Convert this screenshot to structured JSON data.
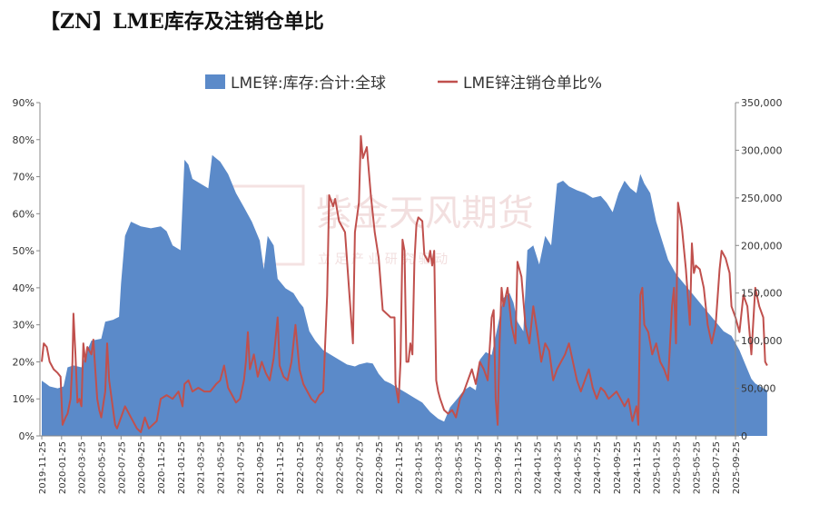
{
  "title": "【ZN】LME库存及注销仓单比",
  "watermark": {
    "brand": "紫金天风期货",
    "tagline": "立 足 产 业  研 究 驱 动"
  },
  "chart_data": {
    "type": "area+line",
    "legend_position": "top-center",
    "series": [
      {
        "name": "LME锌:库存:合计:全球",
        "type": "area",
        "axis": "right",
        "color": "#5b8ac9"
      },
      {
        "name": "LME锌注销仓单比%",
        "type": "line",
        "axis": "left",
        "color": "#c0504d"
      }
    ],
    "y_left": {
      "min": 0,
      "max": 90,
      "ticks": [
        "0%",
        "10%",
        "20%",
        "30%",
        "40%",
        "50%",
        "60%",
        "70%",
        "80%",
        "90%"
      ]
    },
    "y_right": {
      "min": 0,
      "max": 350000,
      "ticks": [
        "0",
        "50,000",
        "100,000",
        "150,000",
        "200,000",
        "250,000",
        "300,000",
        "350,000"
      ]
    },
    "x_ticks": [
      "2019-11-25",
      "2020-01-25",
      "2020-03-25",
      "2020-05-25",
      "2020-07-25",
      "2020-09-25",
      "2020-11-25",
      "2021-01-25",
      "2021-03-25",
      "2021-05-25",
      "2021-07-25",
      "2021-09-25",
      "2021-11-25",
      "2022-01-25",
      "2022-03-25",
      "2022-05-25",
      "2022-07-25",
      "2022-09-25",
      "2022-11-25",
      "2023-01-25",
      "2023-03-25",
      "2023-05-25",
      "2023-07-25",
      "2023-09-25",
      "2023-11-25",
      "2024-01-25",
      "2024-03-25",
      "2024-05-25",
      "2024-07-25",
      "2024-09-25",
      "2024-11-25",
      "2025-01-25",
      "2025-03-25",
      "2025-05-25",
      "2025-07-25",
      "2025-09-25"
    ],
    "inventory": [
      [
        0,
        58000
      ],
      [
        0.2,
        55000
      ],
      [
        0.4,
        52000
      ],
      [
        0.8,
        50000
      ],
      [
        1.1,
        52000
      ],
      [
        1.3,
        72000
      ],
      [
        1.6,
        74000
      ],
      [
        2.0,
        72000
      ],
      [
        2.2,
        85000
      ],
      [
        2.5,
        100000
      ],
      [
        3.0,
        102000
      ],
      [
        3.2,
        120000
      ],
      [
        3.6,
        122000
      ],
      [
        3.9,
        125000
      ],
      [
        4.0,
        160000
      ],
      [
        4.2,
        210000
      ],
      [
        4.5,
        225000
      ],
      [
        5.0,
        220000
      ],
      [
        5.5,
        218000
      ],
      [
        6.0,
        220000
      ],
      [
        6.3,
        215000
      ],
      [
        6.6,
        200000
      ],
      [
        7.0,
        195000
      ],
      [
        7.2,
        290000
      ],
      [
        7.4,
        285000
      ],
      [
        7.6,
        270000
      ],
      [
        8.0,
        265000
      ],
      [
        8.4,
        260000
      ],
      [
        8.6,
        295000
      ],
      [
        9.0,
        288000
      ],
      [
        9.4,
        275000
      ],
      [
        9.8,
        255000
      ],
      [
        10.2,
        240000
      ],
      [
        10.6,
        225000
      ],
      [
        11.0,
        205000
      ],
      [
        11.2,
        175000
      ],
      [
        11.4,
        210000
      ],
      [
        11.7,
        200000
      ],
      [
        11.9,
        165000
      ],
      [
        12.3,
        155000
      ],
      [
        12.7,
        150000
      ],
      [
        13.0,
        140000
      ],
      [
        13.2,
        135000
      ],
      [
        13.5,
        110000
      ],
      [
        13.8,
        100000
      ],
      [
        14.2,
        90000
      ],
      [
        14.6,
        85000
      ],
      [
        15.0,
        80000
      ],
      [
        15.4,
        75000
      ],
      [
        15.8,
        73000
      ],
      [
        16.0,
        75000
      ],
      [
        16.4,
        77000
      ],
      [
        16.7,
        76000
      ],
      [
        17.0,
        65000
      ],
      [
        17.3,
        58000
      ],
      [
        17.6,
        55000
      ],
      [
        18.0,
        50000
      ],
      [
        18.4,
        45000
      ],
      [
        18.8,
        40000
      ],
      [
        19.2,
        35000
      ],
      [
        19.6,
        25000
      ],
      [
        20.0,
        18000
      ],
      [
        20.3,
        15000
      ],
      [
        20.6,
        30000
      ],
      [
        21.0,
        40000
      ],
      [
        21.3,
        48000
      ],
      [
        21.6,
        52000
      ],
      [
        21.9,
        48000
      ],
      [
        22.1,
        80000
      ],
      [
        22.4,
        88000
      ],
      [
        22.7,
        85000
      ],
      [
        23.0,
        115000
      ],
      [
        23.3,
        145000
      ],
      [
        23.6,
        150000
      ],
      [
        23.8,
        140000
      ],
      [
        24.0,
        120000
      ],
      [
        24.3,
        110000
      ],
      [
        24.5,
        195000
      ],
      [
        24.8,
        200000
      ],
      [
        25.1,
        180000
      ],
      [
        25.4,
        210000
      ],
      [
        25.7,
        200000
      ],
      [
        26.0,
        265000
      ],
      [
        26.3,
        268000
      ],
      [
        26.6,
        262000
      ],
      [
        27.0,
        258000
      ],
      [
        27.4,
        255000
      ],
      [
        27.8,
        250000
      ],
      [
        28.2,
        252000
      ],
      [
        28.5,
        245000
      ],
      [
        28.8,
        235000
      ],
      [
        29.1,
        255000
      ],
      [
        29.4,
        268000
      ],
      [
        29.7,
        260000
      ],
      [
        30.0,
        255000
      ],
      [
        30.2,
        275000
      ],
      [
        30.4,
        265000
      ],
      [
        30.7,
        255000
      ],
      [
        31.0,
        225000
      ],
      [
        31.3,
        205000
      ],
      [
        31.6,
        185000
      ],
      [
        32.0,
        170000
      ],
      [
        32.4,
        160000
      ],
      [
        32.8,
        150000
      ],
      [
        33.2,
        140000
      ],
      [
        33.6,
        130000
      ],
      [
        34.0,
        120000
      ],
      [
        34.4,
        110000
      ],
      [
        34.8,
        105000
      ],
      [
        35.2,
        90000
      ],
      [
        35.5,
        75000
      ],
      [
        35.8,
        60000
      ],
      [
        36.0,
        55000
      ],
      [
        36.4,
        50000
      ],
      [
        36.6,
        48000
      ]
    ],
    "ratio": [
      [
        0,
        20
      ],
      [
        0.1,
        25
      ],
      [
        0.25,
        24
      ],
      [
        0.4,
        20
      ],
      [
        0.6,
        18
      ],
      [
        0.8,
        17
      ],
      [
        0.95,
        16
      ],
      [
        1.05,
        3
      ],
      [
        1.2,
        5
      ],
      [
        1.3,
        6
      ],
      [
        1.45,
        10
      ],
      [
        1.55,
        20
      ],
      [
        1.6,
        33
      ],
      [
        1.7,
        22
      ],
      [
        1.8,
        9
      ],
      [
        1.9,
        10
      ],
      [
        2.0,
        8
      ],
      [
        2.1,
        25
      ],
      [
        2.2,
        20
      ],
      [
        2.3,
        24
      ],
      [
        2.5,
        22
      ],
      [
        2.6,
        26
      ],
      [
        2.7,
        18
      ],
      [
        2.8,
        10
      ],
      [
        2.9,
        7
      ],
      [
        3.0,
        5
      ],
      [
        3.2,
        12
      ],
      [
        3.3,
        25
      ],
      [
        3.4,
        15
      ],
      [
        3.6,
        7
      ],
      [
        3.7,
        3
      ],
      [
        3.8,
        2
      ],
      [
        4.0,
        5
      ],
      [
        4.2,
        8
      ],
      [
        4.4,
        6
      ],
      [
        4.6,
        4
      ],
      [
        4.8,
        2
      ],
      [
        5.0,
        1
      ],
      [
        5.2,
        5
      ],
      [
        5.4,
        2
      ],
      [
        5.6,
        3
      ],
      [
        5.8,
        4
      ],
      [
        6.0,
        10
      ],
      [
        6.3,
        11
      ],
      [
        6.6,
        10
      ],
      [
        6.9,
        12
      ],
      [
        7.1,
        8
      ],
      [
        7.2,
        14
      ],
      [
        7.4,
        15
      ],
      [
        7.6,
        12
      ],
      [
        7.9,
        13
      ],
      [
        8.2,
        12
      ],
      [
        8.5,
        12
      ],
      [
        8.8,
        14
      ],
      [
        9.0,
        15
      ],
      [
        9.2,
        19
      ],
      [
        9.4,
        13
      ],
      [
        9.6,
        11
      ],
      [
        9.8,
        9
      ],
      [
        10.0,
        10
      ],
      [
        10.2,
        15
      ],
      [
        10.3,
        20
      ],
      [
        10.4,
        28
      ],
      [
        10.5,
        18
      ],
      [
        10.7,
        22
      ],
      [
        10.9,
        16
      ],
      [
        11.1,
        20
      ],
      [
        11.3,
        17
      ],
      [
        11.5,
        15
      ],
      [
        11.7,
        21
      ],
      [
        11.9,
        32
      ],
      [
        12.0,
        19
      ],
      [
        12.2,
        16
      ],
      [
        12.4,
        15
      ],
      [
        12.6,
        20
      ],
      [
        12.8,
        30
      ],
      [
        13.0,
        18
      ],
      [
        13.2,
        14
      ],
      [
        13.4,
        12
      ],
      [
        13.6,
        10
      ],
      [
        13.8,
        9
      ],
      [
        14.0,
        11
      ],
      [
        14.2,
        12
      ],
      [
        14.4,
        38
      ],
      [
        14.5,
        65
      ],
      [
        14.7,
        62
      ],
      [
        14.8,
        64
      ],
      [
        15.0,
        58
      ],
      [
        15.3,
        55
      ],
      [
        15.5,
        40
      ],
      [
        15.7,
        25
      ],
      [
        15.8,
        55
      ],
      [
        16.0,
        63
      ],
      [
        16.1,
        81
      ],
      [
        16.2,
        75
      ],
      [
        16.4,
        78
      ],
      [
        16.6,
        65
      ],
      [
        16.8,
        55
      ],
      [
        17.0,
        48
      ],
      [
        17.2,
        34
      ],
      [
        17.4,
        33
      ],
      [
        17.6,
        32
      ],
      [
        17.8,
        32
      ],
      [
        17.85,
        14
      ],
      [
        18.0,
        9
      ],
      [
        18.1,
        20
      ],
      [
        18.2,
        53
      ],
      [
        18.3,
        50
      ],
      [
        18.4,
        20
      ],
      [
        18.5,
        20
      ],
      [
        18.6,
        25
      ],
      [
        18.7,
        22
      ],
      [
        18.8,
        47
      ],
      [
        18.9,
        57
      ],
      [
        19.0,
        59
      ],
      [
        19.2,
        58
      ],
      [
        19.3,
        49
      ],
      [
        19.5,
        47
      ],
      [
        19.6,
        50
      ],
      [
        19.7,
        46
      ],
      [
        19.8,
        50
      ],
      [
        19.9,
        15
      ],
      [
        20.0,
        12
      ],
      [
        20.1,
        10
      ],
      [
        20.3,
        7
      ],
      [
        20.5,
        6
      ],
      [
        20.7,
        7
      ],
      [
        20.9,
        5
      ],
      [
        21.1,
        10
      ],
      [
        21.3,
        12
      ],
      [
        21.5,
        15
      ],
      [
        21.7,
        18
      ],
      [
        21.9,
        14
      ],
      [
        22.1,
        20
      ],
      [
        22.3,
        18
      ],
      [
        22.5,
        15
      ],
      [
        22.7,
        32
      ],
      [
        22.8,
        34
      ],
      [
        22.9,
        10
      ],
      [
        23.0,
        3
      ],
      [
        23.1,
        25
      ],
      [
        23.2,
        40
      ],
      [
        23.3,
        35
      ],
      [
        23.5,
        40
      ],
      [
        23.7,
        30
      ],
      [
        23.9,
        25
      ],
      [
        24.0,
        47
      ],
      [
        24.2,
        43
      ],
      [
        24.4,
        30
      ],
      [
        24.6,
        25
      ],
      [
        24.8,
        35
      ],
      [
        25.0,
        28
      ],
      [
        25.2,
        20
      ],
      [
        25.4,
        25
      ],
      [
        25.6,
        23
      ],
      [
        25.8,
        15
      ],
      [
        26.0,
        18
      ],
      [
        26.2,
        20
      ],
      [
        26.4,
        22
      ],
      [
        26.6,
        25
      ],
      [
        26.8,
        20
      ],
      [
        27.0,
        15
      ],
      [
        27.2,
        12
      ],
      [
        27.4,
        15
      ],
      [
        27.6,
        18
      ],
      [
        27.8,
        13
      ],
      [
        28.0,
        10
      ],
      [
        28.2,
        13
      ],
      [
        28.4,
        12
      ],
      [
        28.6,
        10
      ],
      [
        28.8,
        11
      ],
      [
        29.0,
        12
      ],
      [
        29.2,
        10
      ],
      [
        29.4,
        8
      ],
      [
        29.6,
        10
      ],
      [
        29.8,
        4
      ],
      [
        30.0,
        8
      ],
      [
        30.1,
        3
      ],
      [
        30.2,
        38
      ],
      [
        30.3,
        40
      ],
      [
        30.4,
        30
      ],
      [
        30.6,
        28
      ],
      [
        30.8,
        22
      ],
      [
        31.0,
        25
      ],
      [
        31.2,
        20
      ],
      [
        31.4,
        18
      ],
      [
        31.6,
        15
      ],
      [
        31.8,
        35
      ],
      [
        31.9,
        40
      ],
      [
        32.0,
        25
      ],
      [
        32.1,
        63
      ],
      [
        32.2,
        60
      ],
      [
        32.3,
        56
      ],
      [
        32.5,
        45
      ],
      [
        32.7,
        30
      ],
      [
        32.8,
        52
      ],
      [
        32.9,
        44
      ],
      [
        33.0,
        46
      ],
      [
        33.2,
        45
      ],
      [
        33.4,
        40
      ],
      [
        33.6,
        30
      ],
      [
        33.8,
        25
      ],
      [
        34.0,
        30
      ],
      [
        34.2,
        45
      ],
      [
        34.3,
        50
      ],
      [
        34.5,
        48
      ],
      [
        34.7,
        44
      ],
      [
        34.8,
        35
      ],
      [
        35.0,
        32
      ],
      [
        35.2,
        28
      ],
      [
        35.4,
        38
      ],
      [
        35.6,
        35
      ],
      [
        35.8,
        22
      ],
      [
        36.0,
        40
      ],
      [
        36.2,
        35
      ],
      [
        36.4,
        32
      ],
      [
        36.5,
        20
      ],
      [
        36.6,
        19
      ]
    ]
  }
}
